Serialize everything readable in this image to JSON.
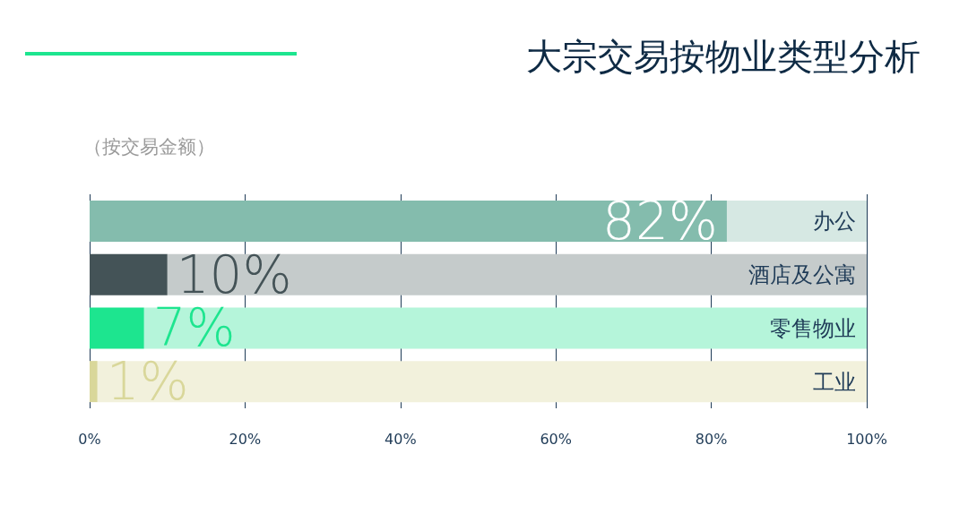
{
  "chart_data": {
    "type": "bar",
    "title": "大宗交易按物业类型分析",
    "subtitle": "（按交易金额）",
    "orientation": "horizontal",
    "stacked": true,
    "categories": [
      "办公",
      "酒店及公寓",
      "零售物业",
      "工业"
    ],
    "series": [
      {
        "colors": [
          "#84bcad",
          "#445357",
          "#1de58f",
          "#d9d79a"
        ],
        "values": [
          82,
          10,
          7,
          1
        ],
        "value_labels": [
          "82%",
          "10%",
          "7%",
          "1%"
        ]
      },
      {
        "colors": [
          "#d6e8e3",
          "#c5cbcb",
          "#b5f5da",
          "#f2f1dc"
        ],
        "values": [
          18,
          90,
          93,
          99
        ]
      }
    ],
    "xlim": [
      0,
      100
    ],
    "xticks": [
      {
        "value": 0,
        "label": "0%"
      },
      {
        "value": 20,
        "label": "20%"
      },
      {
        "value": 40,
        "label": "40%"
      },
      {
        "value": 60,
        "label": "60%"
      },
      {
        "value": 80,
        "label": "80%"
      },
      {
        "value": 100,
        "label": "100%"
      }
    ],
    "grid": "x"
  }
}
